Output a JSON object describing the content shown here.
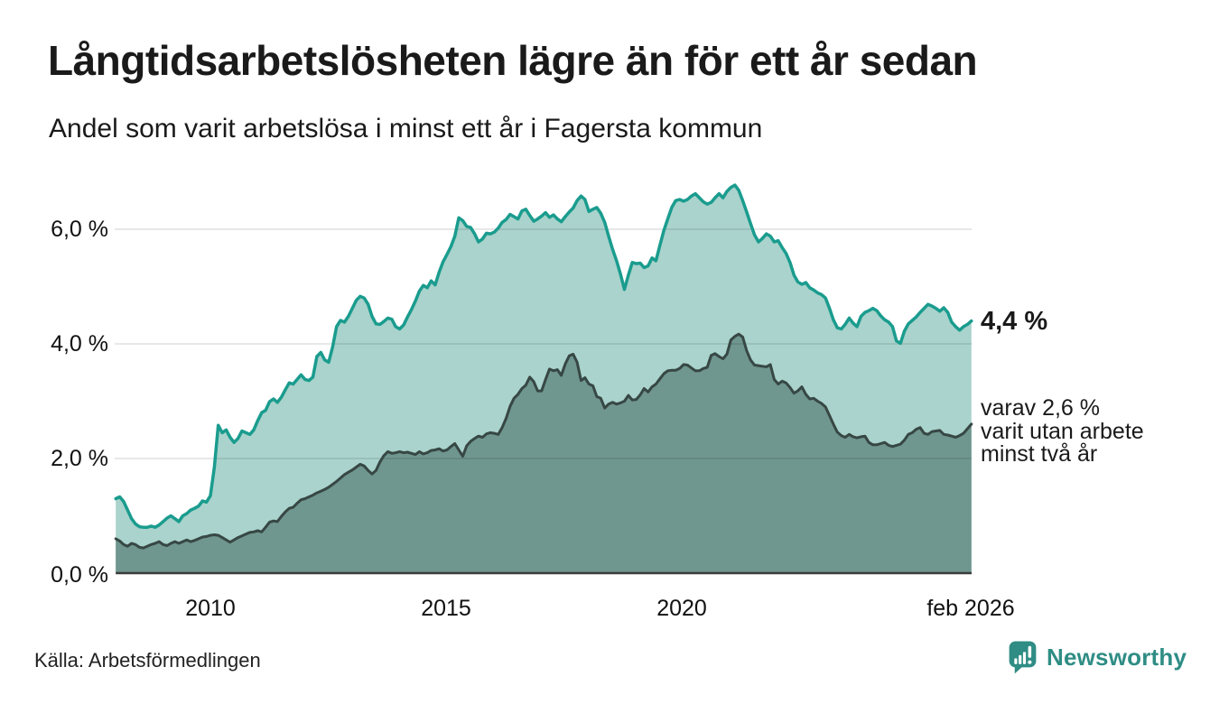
{
  "header": {
    "title": "Långtidsarbetslösheten lägre än för ett år sedan",
    "subtitle": "Andel som varit arbetslösa i minst ett år i Fagersta kommun"
  },
  "chart_data": {
    "type": "area",
    "title": "Långtidsarbetslösheten lägre än för ett år sedan",
    "subtitle": "Andel som varit arbetslösa i minst ett år i Fagersta kommun",
    "unit": "%",
    "grid": true,
    "xlim": [
      2008.0,
      2026.0833
    ],
    "ylim": [
      0,
      7.1
    ],
    "x_ticks": [
      {
        "label": "2010",
        "value": 2010
      },
      {
        "label": "2015",
        "value": 2015
      },
      {
        "label": "2020",
        "value": 2020
      },
      {
        "label": "feb 2026",
        "value": 2026.0833
      }
    ],
    "y_ticks": [
      {
        "label": "6,0 %",
        "value": 6.0
      },
      {
        "label": "4,0 %",
        "value": 4.0
      },
      {
        "label": "2,0 %",
        "value": 2.0
      },
      {
        "label": "0,0 %",
        "value": 0.0
      }
    ],
    "series": [
      {
        "name": "Arbetslösa minst ett år",
        "start": "2008-01",
        "frequency": "monthly",
        "line_color": "#1a9c8e",
        "fill_color": "#a9d3cc",
        "line_width": 3.5,
        "values": [
          1.3,
          1.33,
          1.25,
          1.1,
          0.95,
          0.86,
          0.81,
          0.8,
          0.8,
          0.82,
          0.8,
          0.84,
          0.9,
          0.96,
          1.0,
          0.95,
          0.9,
          1.0,
          1.04,
          1.1,
          1.13,
          1.17,
          1.26,
          1.24,
          1.35,
          1.85,
          2.58,
          2.45,
          2.5,
          2.37,
          2.28,
          2.35,
          2.48,
          2.45,
          2.42,
          2.5,
          2.66,
          2.8,
          2.84,
          2.99,
          3.04,
          2.98,
          3.07,
          3.2,
          3.32,
          3.3,
          3.38,
          3.46,
          3.38,
          3.36,
          3.42,
          3.78,
          3.85,
          3.72,
          3.68,
          3.95,
          4.3,
          4.41,
          4.38,
          4.48,
          4.62,
          4.76,
          4.83,
          4.8,
          4.69,
          4.48,
          4.35,
          4.34,
          4.39,
          4.45,
          4.43,
          4.3,
          4.26,
          4.33,
          4.47,
          4.6,
          4.75,
          4.92,
          5.02,
          4.98,
          5.1,
          5.03,
          5.25,
          5.43,
          5.56,
          5.7,
          5.88,
          6.2,
          6.15,
          6.05,
          6.03,
          5.92,
          5.78,
          5.83,
          5.93,
          5.92,
          5.95,
          6.02,
          6.12,
          6.17,
          6.26,
          6.22,
          6.18,
          6.32,
          6.35,
          6.24,
          6.14,
          6.18,
          6.23,
          6.29,
          6.21,
          6.25,
          6.18,
          6.13,
          6.22,
          6.3,
          6.37,
          6.5,
          6.58,
          6.52,
          6.31,
          6.35,
          6.38,
          6.28,
          6.12,
          5.88,
          5.65,
          5.45,
          5.22,
          4.95,
          5.2,
          5.42,
          5.4,
          5.41,
          5.33,
          5.36,
          5.5,
          5.45,
          5.72,
          5.98,
          6.18,
          6.38,
          6.5,
          6.52,
          6.49,
          6.52,
          6.58,
          6.62,
          6.55,
          6.48,
          6.44,
          6.47,
          6.55,
          6.62,
          6.55,
          6.66,
          6.73,
          6.77,
          6.68,
          6.5,
          6.3,
          6.1,
          5.9,
          5.78,
          5.84,
          5.92,
          5.88,
          5.78,
          5.8,
          5.68,
          5.58,
          5.42,
          5.2,
          5.08,
          5.04,
          5.07,
          4.98,
          4.94,
          4.89,
          4.86,
          4.8,
          4.62,
          4.42,
          4.28,
          4.26,
          4.34,
          4.45,
          4.36,
          4.3,
          4.48,
          4.55,
          4.58,
          4.62,
          4.58,
          4.49,
          4.42,
          4.38,
          4.3,
          4.05,
          4.01,
          4.22,
          4.35,
          4.41,
          4.47,
          4.55,
          4.62,
          4.69,
          4.66,
          4.62,
          4.57,
          4.63,
          4.55,
          4.38,
          4.3,
          4.24,
          4.3,
          4.34,
          4.4
        ]
      },
      {
        "name": "Varav arbetslösa minst två år",
        "start": "2008-01",
        "frequency": "monthly",
        "line_color": "#374744",
        "fill_color": "#6f968f",
        "line_width": 3,
        "values": [
          0.6,
          0.56,
          0.5,
          0.47,
          0.52,
          0.5,
          0.45,
          0.44,
          0.47,
          0.5,
          0.52,
          0.55,
          0.5,
          0.48,
          0.52,
          0.55,
          0.52,
          0.55,
          0.58,
          0.55,
          0.57,
          0.6,
          0.63,
          0.64,
          0.66,
          0.67,
          0.66,
          0.62,
          0.58,
          0.54,
          0.58,
          0.62,
          0.65,
          0.68,
          0.71,
          0.72,
          0.74,
          0.72,
          0.8,
          0.89,
          0.91,
          0.9,
          0.99,
          1.07,
          1.13,
          1.15,
          1.22,
          1.28,
          1.3,
          1.33,
          1.36,
          1.4,
          1.43,
          1.46,
          1.5,
          1.55,
          1.6,
          1.66,
          1.72,
          1.76,
          1.8,
          1.85,
          1.9,
          1.87,
          1.79,
          1.73,
          1.79,
          1.94,
          2.05,
          2.12,
          2.09,
          2.1,
          2.12,
          2.1,
          2.11,
          2.09,
          2.07,
          2.12,
          2.08,
          2.1,
          2.14,
          2.15,
          2.17,
          2.13,
          2.15,
          2.21,
          2.26,
          2.15,
          2.04,
          2.22,
          2.3,
          2.35,
          2.39,
          2.37,
          2.43,
          2.45,
          2.44,
          2.42,
          2.54,
          2.7,
          2.91,
          3.05,
          3.12,
          3.22,
          3.28,
          3.42,
          3.34,
          3.18,
          3.18,
          3.38,
          3.56,
          3.53,
          3.55,
          3.45,
          3.65,
          3.79,
          3.82,
          3.68,
          3.36,
          3.41,
          3.3,
          3.27,
          3.08,
          3.05,
          2.88,
          2.95,
          2.98,
          2.95,
          2.97,
          3.0,
          3.1,
          3.02,
          3.03,
          3.11,
          3.22,
          3.16,
          3.25,
          3.3,
          3.39,
          3.48,
          3.53,
          3.54,
          3.54,
          3.57,
          3.64,
          3.63,
          3.58,
          3.53,
          3.53,
          3.57,
          3.59,
          3.8,
          3.83,
          3.78,
          3.74,
          3.82,
          4.07,
          4.13,
          4.17,
          4.12,
          3.88,
          3.72,
          3.63,
          3.62,
          3.61,
          3.6,
          3.64,
          3.38,
          3.3,
          3.35,
          3.32,
          3.24,
          3.14,
          3.18,
          3.25,
          3.12,
          3.04,
          3.05,
          3.0,
          2.96,
          2.9,
          2.75,
          2.6,
          2.46,
          2.4,
          2.37,
          2.42,
          2.38,
          2.36,
          2.38,
          2.39,
          2.28,
          2.24,
          2.24,
          2.26,
          2.28,
          2.23,
          2.21,
          2.23,
          2.25,
          2.32,
          2.42,
          2.45,
          2.51,
          2.54,
          2.44,
          2.42,
          2.47,
          2.48,
          2.49,
          2.42,
          2.41,
          2.39,
          2.37,
          2.4,
          2.44,
          2.52,
          2.6
        ]
      }
    ],
    "annotations": {
      "latest_total": "4,4 %",
      "latest_total_value": 4.4,
      "secondary_lines": [
        "varav 2,6 %",
        "varit utan arbete",
        "minst två år"
      ],
      "secondary_value": 2.6
    }
  },
  "footer": {
    "source": "Källa: Arbetsförmedlingen",
    "brand": "Newsworthy",
    "brand_color": "#2f8d85"
  }
}
